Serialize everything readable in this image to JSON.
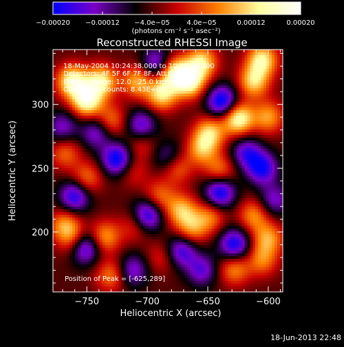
{
  "chart_data": {
    "type": "heatmap",
    "title": "Reconstructed RHESSI Image",
    "xlabel": "Heliocentric X (arcsec)",
    "ylabel": "Heliocentric Y (arcsec)",
    "xlim": [
      -778,
      -588
    ],
    "ylim": [
      153,
      343
    ],
    "x_ticks": [
      -750,
      -700,
      -650,
      -600
    ],
    "x_tick_labels": [
      "−750",
      "−700",
      "−650",
      "−600"
    ],
    "y_ticks": [
      200,
      250,
      300
    ],
    "y_tick_labels": [
      "200",
      "250",
      "300"
    ],
    "colorbar": {
      "range": [
        -0.0002,
        0.0002
      ],
      "ticks": [
        -0.0002,
        -0.00012,
        -4e-05,
        4e-05,
        0.00012,
        0.0002
      ],
      "tick_labels": [
        "−0.00020",
        "−0.00012",
        "−4.0e−05",
        "4.0e−05",
        "0.00012",
        "0.00020"
      ],
      "unit_label": "(photons cm⁻² s⁻¹ asec⁻²)",
      "colormap": [
        "#0000ff",
        "#7a00c8",
        "#000000",
        "#c80000",
        "#ff8000",
        "#ffffa0",
        "#ffffff"
      ]
    },
    "annotations": {
      "time_range": "18-May-2004 10:24:38.000 to 10:28:56.000",
      "detectors": "Detectors: 4F 5F 6F 7F 8F, Att 0",
      "energy_range": "Energy Range: 12.0 - 25.0 keV",
      "clean": "Clean      Total counts: 8.43E+03",
      "peak": "Position of Peak = [-625,289]"
    },
    "peak_position": [
      -625,
      289
    ],
    "hot_blobs": [
      {
        "x": -762,
        "y": 318,
        "v": 0.00019
      },
      {
        "x": -750,
        "y": 303,
        "v": 0.0002
      },
      {
        "x": -738,
        "y": 318,
        "v": 0.00017
      },
      {
        "x": -708,
        "y": 318,
        "v": 0.00013
      },
      {
        "x": -688,
        "y": 308,
        "v": 0.00016
      },
      {
        "x": -678,
        "y": 325,
        "v": 0.00018
      },
      {
        "x": -665,
        "y": 318,
        "v": 0.00019
      },
      {
        "x": -655,
        "y": 333,
        "v": 0.00016
      },
      {
        "x": -625,
        "y": 289,
        "v": 0.0002
      },
      {
        "x": -612,
        "y": 318,
        "v": 0.00015
      },
      {
        "x": -605,
        "y": 335,
        "v": 0.00017
      },
      {
        "x": -600,
        "y": 290,
        "v": 0.00012
      },
      {
        "x": -730,
        "y": 287,
        "v": 0.0001
      },
      {
        "x": -648,
        "y": 278,
        "v": 0.00014
      },
      {
        "x": -655,
        "y": 265,
        "v": 0.00012
      },
      {
        "x": -640,
        "y": 248,
        "v": 0.0001
      },
      {
        "x": -676,
        "y": 251,
        "v": 0.00011
      },
      {
        "x": -768,
        "y": 262,
        "v": 9e-05
      },
      {
        "x": -750,
        "y": 242,
        "v": 0.0001
      },
      {
        "x": -712,
        "y": 248,
        "v": 6e-05
      },
      {
        "x": -705,
        "y": 270,
        "v": 7e-05
      },
      {
        "x": -768,
        "y": 205,
        "v": 0.00012
      },
      {
        "x": -760,
        "y": 193,
        "v": 0.0001
      },
      {
        "x": -735,
        "y": 196,
        "v": 0.00012
      },
      {
        "x": -710,
        "y": 205,
        "v": 7e-05
      },
      {
        "x": -690,
        "y": 228,
        "v": 9e-05
      },
      {
        "x": -672,
        "y": 217,
        "v": 0.00013
      },
      {
        "x": -663,
        "y": 203,
        "v": 0.00011
      },
      {
        "x": -648,
        "y": 212,
        "v": 0.0001
      },
      {
        "x": -600,
        "y": 195,
        "v": 0.00012
      },
      {
        "x": -730,
        "y": 166,
        "v": 0.0001
      },
      {
        "x": -628,
        "y": 171,
        "v": 0.00011
      },
      {
        "x": -612,
        "y": 213,
        "v": 0.00011
      },
      {
        "x": -605,
        "y": 178,
        "v": 0.0001
      },
      {
        "x": -688,
        "y": 180,
        "v": 6e-05
      }
    ],
    "cold_blobs": [
      {
        "x": -752,
        "y": 188,
        "v": -0.00017
      },
      {
        "x": -760,
        "y": 228,
        "v": -0.00015
      },
      {
        "x": -725,
        "y": 257,
        "v": -0.00017
      },
      {
        "x": -705,
        "y": 283,
        "v": -0.00013
      },
      {
        "x": -700,
        "y": 213,
        "v": -0.00016
      },
      {
        "x": -672,
        "y": 185,
        "v": -0.00013
      },
      {
        "x": -640,
        "y": 231,
        "v": -0.00017
      },
      {
        "x": -638,
        "y": 302,
        "v": -0.00018
      },
      {
        "x": -628,
        "y": 190,
        "v": -0.00016
      },
      {
        "x": -605,
        "y": 250,
        "v": -0.00015
      },
      {
        "x": -618,
        "y": 262,
        "v": -0.00012
      },
      {
        "x": -692,
        "y": 332,
        "v": -0.00013
      },
      {
        "x": -742,
        "y": 278,
        "v": -0.00011
      },
      {
        "x": -712,
        "y": 170,
        "v": -0.00011
      },
      {
        "x": -655,
        "y": 170,
        "v": -0.00011
      },
      {
        "x": -770,
        "y": 282,
        "v": -0.0001
      },
      {
        "x": -682,
        "y": 258,
        "v": -0.0001
      },
      {
        "x": -595,
        "y": 225,
        "v": -0.0001
      }
    ]
  },
  "footer": {
    "date": "18-Jun-2013 22:48"
  }
}
